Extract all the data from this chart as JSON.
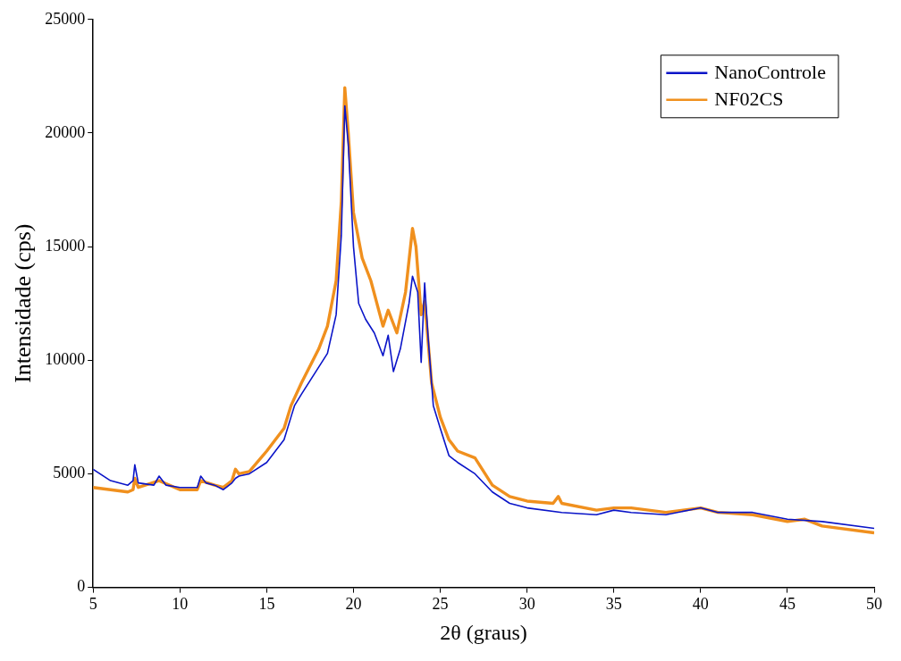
{
  "chart_data": {
    "type": "line",
    "xlabel": "2θ (graus)",
    "ylabel": "Intensidade (cps)",
    "xlim": [
      5,
      50
    ],
    "xticks": [
      5,
      10,
      15,
      20,
      25,
      30,
      35,
      40,
      45,
      50
    ],
    "ylim": [
      0,
      25000
    ],
    "yticks": [
      0,
      5000,
      10000,
      15000,
      20000,
      25000
    ],
    "grid": false,
    "legend": "top right",
    "marker": "none",
    "line_style": "solid",
    "series": [
      {
        "name": "NanoControle",
        "color": "#0a14c8",
        "x": [
          5,
          6,
          7,
          7.3,
          7.4,
          7.6,
          8.5,
          8.8,
          9.2,
          10,
          11,
          11.2,
          11.5,
          12,
          12.5,
          13,
          13.2,
          13.4,
          14,
          15,
          16,
          16.4,
          16.6,
          17,
          18,
          18.5,
          19,
          19.3,
          19.5,
          19.7,
          20,
          20.3,
          20.7,
          21.2,
          21.7,
          22,
          22.3,
          22.7,
          23.2,
          23.4,
          23.7,
          23.9,
          24.1,
          24.3,
          24.6,
          25,
          25.5,
          26,
          27,
          28,
          29,
          30,
          32,
          34,
          35,
          36,
          38,
          40,
          41,
          43,
          45,
          47,
          50
        ],
        "values": [
          5200,
          4700,
          4500,
          4700,
          5400,
          4600,
          4500,
          4900,
          4500,
          4400,
          4400,
          4900,
          4600,
          4500,
          4300,
          4600,
          4800,
          4900,
          5000,
          5500,
          6500,
          7500,
          8000,
          8500,
          9700,
          10300,
          12000,
          15500,
          21200,
          19500,
          15000,
          12500,
          11800,
          11200,
          10200,
          11100,
          9500,
          10500,
          12500,
          13700,
          13000,
          9900,
          13400,
          11000,
          8000,
          7000,
          5800,
          5500,
          5000,
          4200,
          3700,
          3500,
          3300,
          3200,
          3400,
          3300,
          3200,
          3500,
          3300,
          3300,
          3000,
          2900,
          2600
        ]
      },
      {
        "name": "NF02CS",
        "color": "#f0901e",
        "x": [
          5,
          6,
          7,
          7.3,
          7.4,
          7.6,
          8.8,
          10,
          11,
          11.2,
          12,
          12.5,
          13,
          13.2,
          13.4,
          14,
          15,
          16,
          16.4,
          17,
          18,
          18.5,
          19,
          19.3,
          19.5,
          19.7,
          20,
          20.5,
          21,
          21.7,
          22,
          22.5,
          23,
          23.4,
          23.6,
          23.9,
          24.1,
          24.5,
          25,
          25.5,
          26,
          27,
          28,
          29,
          30,
          31.5,
          31.8,
          32,
          34,
          35,
          36,
          38,
          40,
          41,
          43,
          45,
          46,
          47,
          50
        ],
        "values": [
          4400,
          4300,
          4200,
          4300,
          4800,
          4400,
          4700,
          4300,
          4300,
          4700,
          4500,
          4400,
          4700,
          5200,
          5000,
          5100,
          6000,
          7000,
          8000,
          9000,
          10500,
          11500,
          13500,
          17000,
          22000,
          20000,
          16500,
          14500,
          13500,
          11500,
          12200,
          11200,
          13000,
          15800,
          15000,
          12000,
          12600,
          9000,
          7500,
          6500,
          6000,
          5700,
          4500,
          4000,
          3800,
          3700,
          4000,
          3700,
          3400,
          3500,
          3500,
          3300,
          3500,
          3300,
          3200,
          2900,
          3000,
          2700,
          2400
        ]
      }
    ]
  }
}
